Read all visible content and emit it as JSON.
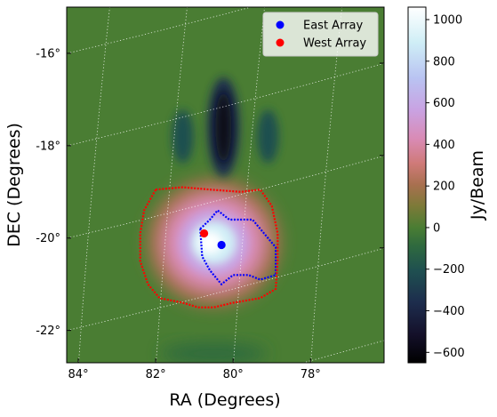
{
  "chart_data": {
    "type": "heatmap",
    "xlabel": "RA (Degrees)",
    "ylabel": "DEC (Degrees)",
    "x_ticks": [
      "84°",
      "82°",
      "80°",
      "78°"
    ],
    "x_tick_values": [
      84,
      82,
      80,
      78
    ],
    "y_ticks": [
      "-16°",
      "-18°",
      "-20°",
      "-22°"
    ],
    "y_tick_values": [
      -16,
      -18,
      -20,
      -22
    ],
    "xlim": [
      84.3,
      76.1
    ],
    "ylim": [
      -22.7,
      -15.0
    ],
    "grid": true,
    "legend_position": "top-right",
    "colorbar": {
      "label": "Jy/Beam",
      "min": -650,
      "max": 1060,
      "ticks": [
        -600,
        -400,
        -200,
        0,
        200,
        400,
        600,
        800,
        1000
      ],
      "tick_labels": [
        "−600",
        "−400",
        "−200",
        "0",
        "200",
        "400",
        "600",
        "800",
        "1000"
      ]
    },
    "emission": [
      {
        "kind": "source",
        "ra": 80.5,
        "dec": -20.1,
        "peak_jy_beam": 1060
      },
      {
        "kind": "sidelobe",
        "ra": 80.25,
        "dec": -17.6,
        "peak_jy_beam": -620
      },
      {
        "kind": "sidelobe",
        "ra": 81.3,
        "dec": -17.8,
        "peak_jy_beam": -250
      },
      {
        "kind": "sidelobe",
        "ra": 79.1,
        "dec": -17.8,
        "peak_jy_beam": -250
      },
      {
        "kind": "sidelobe",
        "ra": 80.5,
        "dec": -22.5,
        "peak_jy_beam": -120
      }
    ],
    "series": [
      {
        "name": "East Array",
        "color": "#0000ff",
        "point": {
          "ra": 80.3,
          "dec": -20.15
        },
        "contour": [
          [
            80.85,
            -19.8
          ],
          [
            80.6,
            -19.6
          ],
          [
            80.4,
            -19.4
          ],
          [
            80.1,
            -19.6
          ],
          [
            79.5,
            -19.6
          ],
          [
            79.2,
            -19.9
          ],
          [
            78.9,
            -20.2
          ],
          [
            78.9,
            -20.8
          ],
          [
            79.3,
            -20.9
          ],
          [
            79.6,
            -20.8
          ],
          [
            80.0,
            -20.8
          ],
          [
            80.3,
            -21.0
          ],
          [
            80.6,
            -20.7
          ],
          [
            80.8,
            -20.4
          ],
          [
            80.85,
            -19.8
          ]
        ]
      },
      {
        "name": "West Array",
        "color": "#ff0000",
        "point": {
          "ra": 80.75,
          "dec": -19.9
        },
        "contour": [
          [
            82.0,
            -18.95
          ],
          [
            81.3,
            -18.9
          ],
          [
            80.6,
            -18.95
          ],
          [
            79.8,
            -19.0
          ],
          [
            79.3,
            -18.95
          ],
          [
            79.0,
            -19.3
          ],
          [
            78.85,
            -19.9
          ],
          [
            78.85,
            -20.5
          ],
          [
            78.9,
            -21.1
          ],
          [
            79.3,
            -21.3
          ],
          [
            80.0,
            -21.4
          ],
          [
            80.5,
            -21.5
          ],
          [
            80.9,
            -21.5
          ],
          [
            81.3,
            -21.4
          ],
          [
            81.9,
            -21.3
          ],
          [
            82.2,
            -21.0
          ],
          [
            82.4,
            -20.5
          ],
          [
            82.4,
            -19.9
          ],
          [
            82.3,
            -19.4
          ],
          [
            82.0,
            -18.95
          ]
        ]
      }
    ]
  }
}
